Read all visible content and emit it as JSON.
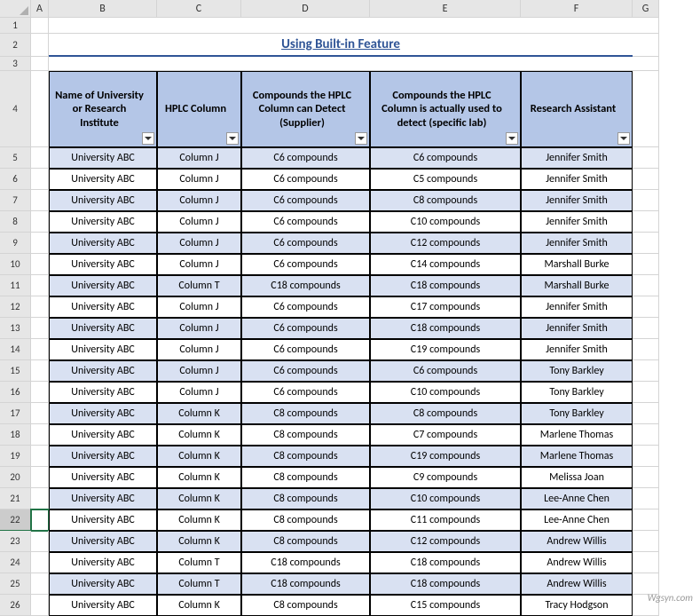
{
  "columns": [
    "A",
    "B",
    "C",
    "D",
    "E",
    "F",
    "G"
  ],
  "title": "Using Built-in Feature",
  "headers": {
    "b": "Name of University or Research Institute",
    "c": "HPLC Column",
    "d": "Compounds the HPLC Column can Detect (Supplier)",
    "e": "Compounds the HPLC Column is actually used to detect (specific lab)",
    "f": "Research Assistant"
  },
  "rows": [
    {
      "n": 5,
      "b": "University ABC",
      "c": "Column J",
      "d": "C6 compounds",
      "e": "C6 compounds",
      "f": "Jennifer Smith",
      "band": true
    },
    {
      "n": 6,
      "b": "University ABC",
      "c": "Column J",
      "d": "C6 compounds",
      "e": "C5 compounds",
      "f": "Jennifer Smith",
      "band": false
    },
    {
      "n": 7,
      "b": "University ABC",
      "c": "Column J",
      "d": "C6 compounds",
      "e": "C8 compounds",
      "f": "Jennifer Smith",
      "band": true
    },
    {
      "n": 8,
      "b": "University ABC",
      "c": "Column J",
      "d": "C6 compounds",
      "e": "C10 compounds",
      "f": "Jennifer Smith",
      "band": false
    },
    {
      "n": 9,
      "b": "University ABC",
      "c": "Column J",
      "d": "C6 compounds",
      "e": "C12 compounds",
      "f": "Jennifer Smith",
      "band": true
    },
    {
      "n": 10,
      "b": "University ABC",
      "c": "Column J",
      "d": "C6 compounds",
      "e": "C14 compounds",
      "f": "Marshall Burke",
      "band": false
    },
    {
      "n": 11,
      "b": "University ABC",
      "c": "Column T",
      "d": "C18 compounds",
      "e": "C18 compounds",
      "f": "Marshall Burke",
      "band": true
    },
    {
      "n": 12,
      "b": "University ABC",
      "c": "Column J",
      "d": "C6 compounds",
      "e": "C17 compounds",
      "f": "Jennifer Smith",
      "band": false
    },
    {
      "n": 13,
      "b": "University ABC",
      "c": "Column J",
      "d": "C6 compounds",
      "e": "C18 compounds",
      "f": "Jennifer Smith",
      "band": true
    },
    {
      "n": 14,
      "b": "University ABC",
      "c": "Column J",
      "d": "C6 compounds",
      "e": "C19 compounds",
      "f": "Jennifer Smith",
      "band": false
    },
    {
      "n": 15,
      "b": "University ABC",
      "c": "Column J",
      "d": "C6 compounds",
      "e": "C6 compounds",
      "f": "Tony Barkley",
      "band": true
    },
    {
      "n": 16,
      "b": "University ABC",
      "c": "Column J",
      "d": "C6 compounds",
      "e": "C10 compounds",
      "f": "Tony Barkley",
      "band": false
    },
    {
      "n": 17,
      "b": "University ABC",
      "c": "Column K",
      "d": "C8 compounds",
      "e": "C8 compounds",
      "f": "Tony Barkley",
      "band": true
    },
    {
      "n": 18,
      "b": "University ABC",
      "c": "Column K",
      "d": "C8 compounds",
      "e": "C7 compounds",
      "f": "Marlene Thomas",
      "band": false
    },
    {
      "n": 19,
      "b": "University ABC",
      "c": "Column K",
      "d": "C8 compounds",
      "e": "C19 compounds",
      "f": "Marlene Thomas",
      "band": true
    },
    {
      "n": 20,
      "b": "University ABC",
      "c": "Column K",
      "d": "C8 compounds",
      "e": "C9 compounds",
      "f": "Melissa Joan",
      "band": false
    },
    {
      "n": 21,
      "b": "University ABC",
      "c": "Column K",
      "d": "C8 compounds",
      "e": "C10 compounds",
      "f": "Lee-Anne Chen",
      "band": true
    },
    {
      "n": 22,
      "b": "University ABC",
      "c": "Column K",
      "d": "C8 compounds",
      "e": "C11 compounds",
      "f": "Lee-Anne Chen",
      "band": false,
      "sel": true
    },
    {
      "n": 23,
      "b": "University ABC",
      "c": "Column K",
      "d": "C8 compounds",
      "e": "C12 compounds",
      "f": "Andrew Willis",
      "band": true
    },
    {
      "n": 24,
      "b": "University ABC",
      "c": "Column T",
      "d": "C18 compounds",
      "e": "C18 compounds",
      "f": "Andrew Willis",
      "band": false
    },
    {
      "n": 25,
      "b": "University ABC",
      "c": "Column T",
      "d": "C18 compounds",
      "e": "C18 compounds",
      "f": "Andrew Willis",
      "band": true
    },
    {
      "n": 26,
      "b": "University ABC",
      "c": "Column K",
      "d": "C8 compounds",
      "e": "C15 compounds",
      "f": "Tracy Hodgson",
      "band": false
    }
  ],
  "watermark": "Wgsyn.com",
  "colors": {
    "header_bg": "#b4c6e7",
    "band_bg": "#d9e1f2",
    "title_color": "#2f5496",
    "grid": "#d4d4d4",
    "border": "#000000"
  }
}
